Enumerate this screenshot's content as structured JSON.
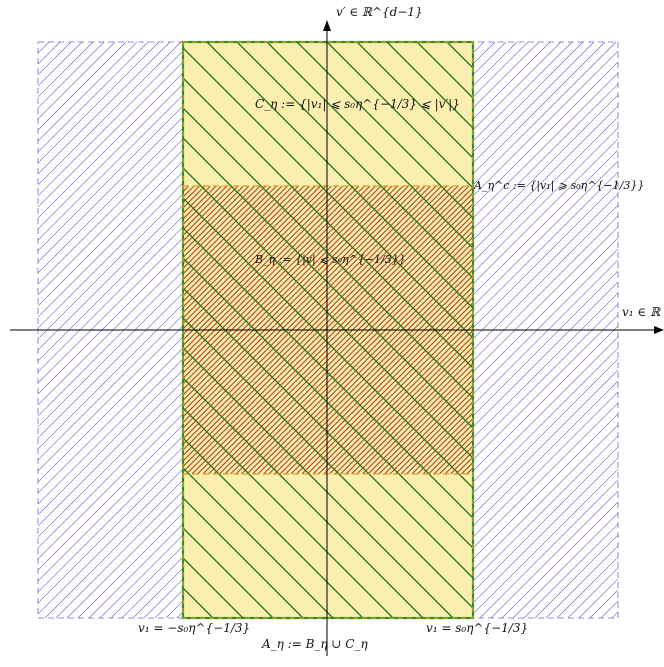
{
  "colors": {
    "outer_hatch": "#5b5bd6",
    "outer_border": "#6b6bdc",
    "yellow_fill": "#fbefb0",
    "green_line": "#2f7a1e",
    "red_hatch": "#b23a16",
    "orange_dash": "#e39b25",
    "axis": "#000000"
  },
  "labels": {
    "y_axis": "v′ ∈ ℝ^{d−1}",
    "x_axis": "v₁ ∈ ℝ",
    "c_eta": "C_η := {|v₁| ⩽ s₀η^{−1/3} ⩽ |v′|}",
    "a_eta_c": "A_η^c := {|v₁| ⩾ s₀η^{−1/3}}",
    "b_eta": "B_η := {|v| ⩽ s₀η^{−1/3}}",
    "left_bound": "v₁ = −s₀η^{−1/3}",
    "right_bound": "v₁ = s₀η^{−1/3}",
    "a_eta": "A_η := B_η ∪ C_η"
  }
}
